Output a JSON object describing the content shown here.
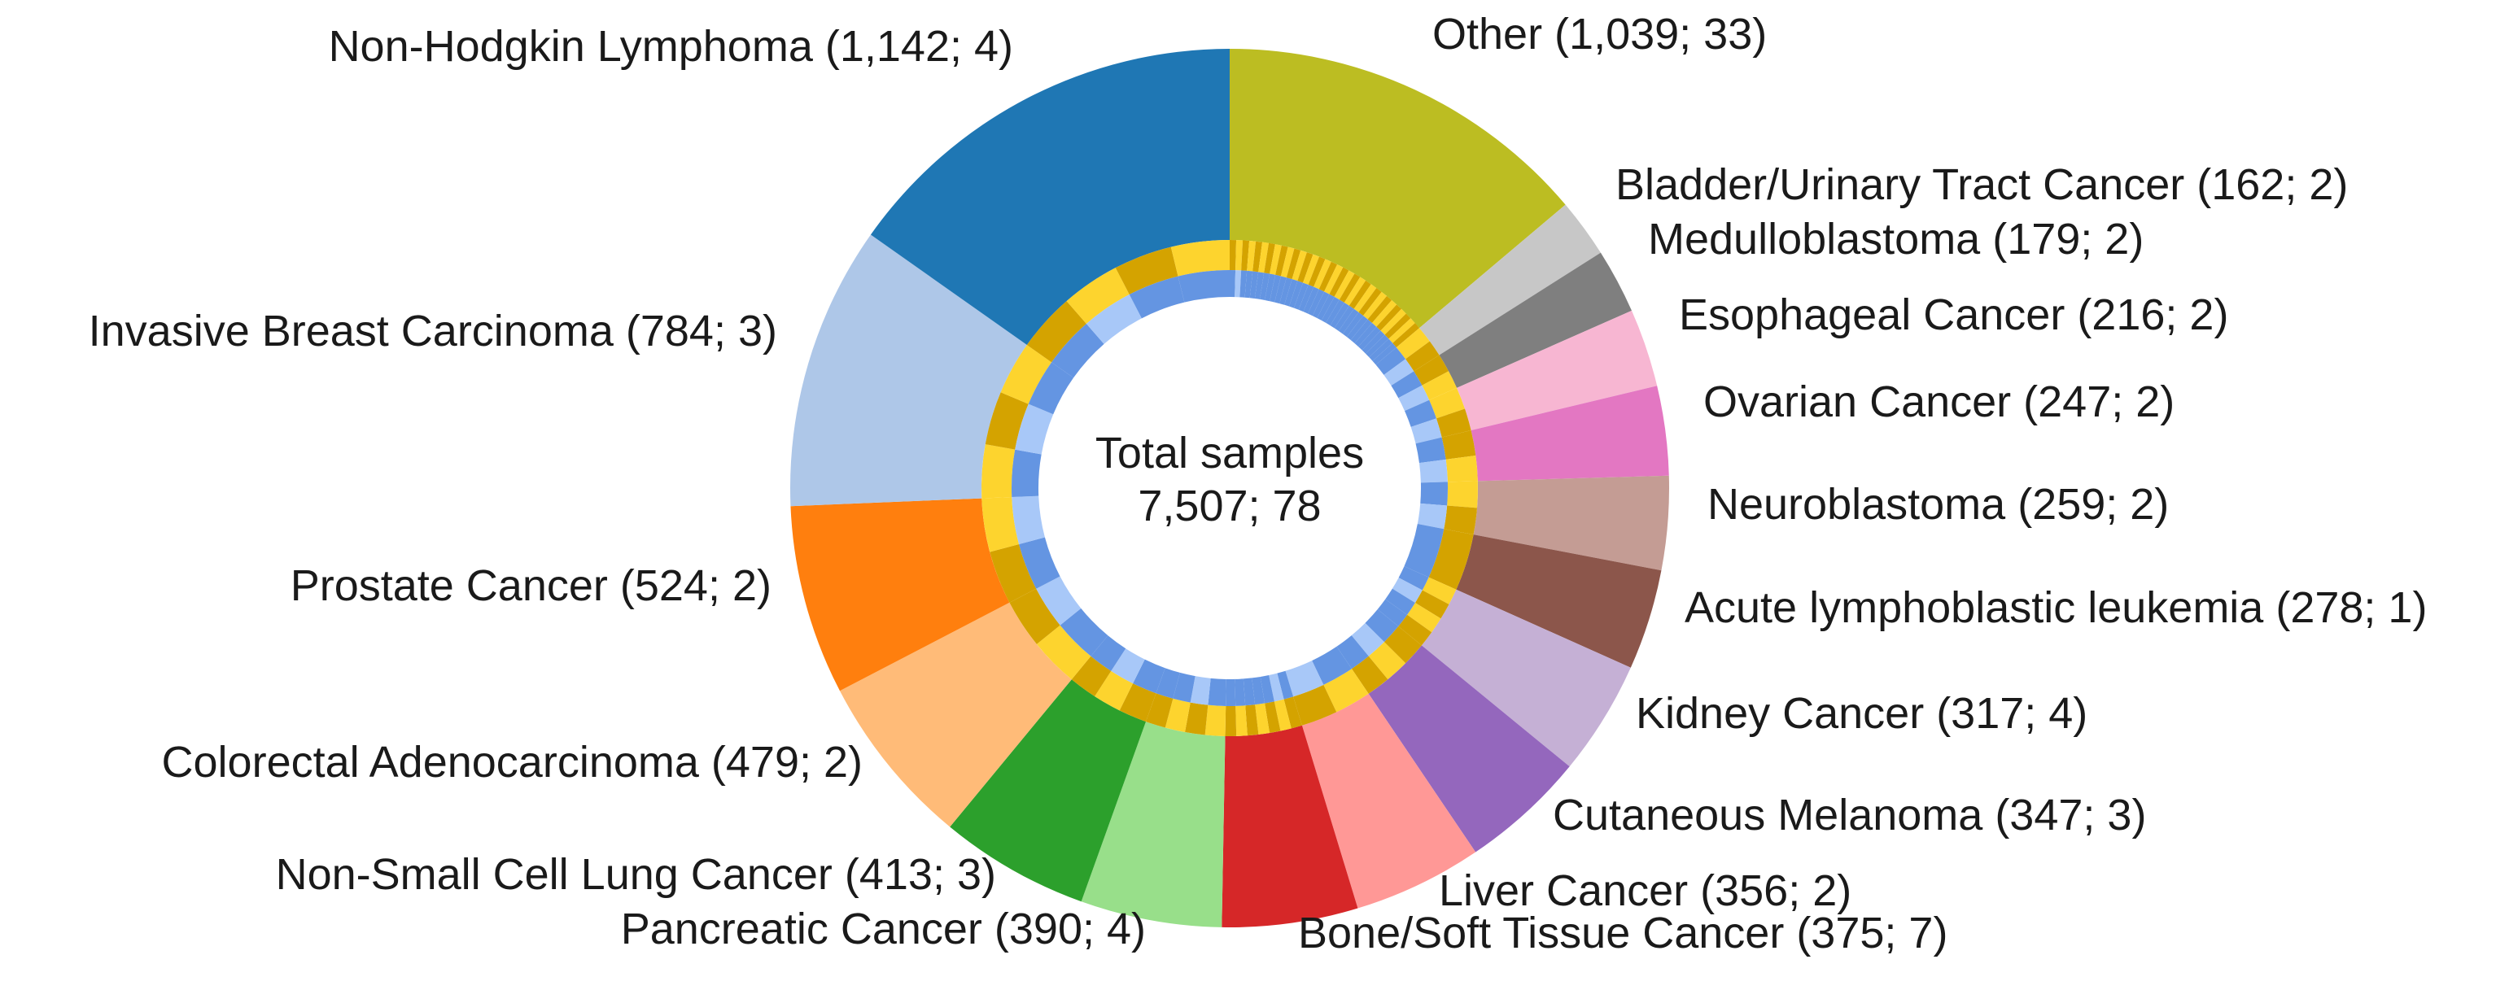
{
  "chart_data": {
    "type": "donut",
    "center": {
      "line1": "Total samples",
      "line2": "7,507; 78"
    },
    "categories": [
      {
        "name": "Other",
        "samples": 1039,
        "studies": 33,
        "label": "Other (1,039; 33)",
        "color": "#bcbd22"
      },
      {
        "name": "Bladder/Urinary Tract Cancer",
        "samples": 162,
        "studies": 2,
        "label": "Bladder/Urinary Tract Cancer (162; 2)",
        "color": "#c7c7c7"
      },
      {
        "name": "Medulloblastoma",
        "samples": 179,
        "studies": 2,
        "label": "Medulloblastoma (179; 2)",
        "color": "#7f7f7f"
      },
      {
        "name": "Esophageal Cancer",
        "samples": 216,
        "studies": 2,
        "label": "Esophageal Cancer (216; 2)",
        "color": "#f7b6d2"
      },
      {
        "name": "Ovarian Cancer",
        "samples": 247,
        "studies": 2,
        "label": "Ovarian Cancer (247; 2)",
        "color": "#e377c2"
      },
      {
        "name": "Neuroblastoma",
        "samples": 259,
        "studies": 2,
        "label": "Neuroblastoma (259; 2)",
        "color": "#c49c94"
      },
      {
        "name": "Acute lymphoblastic leukemia",
        "samples": 278,
        "studies": 1,
        "label": "Acute lymphoblastic leukemia (278; 1)",
        "color": "#8c564b"
      },
      {
        "name": "Kidney Cancer",
        "samples": 317,
        "studies": 4,
        "label": "Kidney Cancer (317; 4)",
        "color": "#c5b0d5"
      },
      {
        "name": "Cutaneous Melanoma",
        "samples": 347,
        "studies": 3,
        "label": "Cutaneous Melanoma (347; 3)",
        "color": "#9467bd"
      },
      {
        "name": "Liver Cancer",
        "samples": 356,
        "studies": 2,
        "label": "Liver Cancer (356; 2)",
        "color": "#ff9896"
      },
      {
        "name": "Bone/Soft Tissue Cancer",
        "samples": 375,
        "studies": 7,
        "label": "Bone/Soft Tissue Cancer (375; 7)",
        "color": "#d62728"
      },
      {
        "name": "Pancreatic Cancer",
        "samples": 390,
        "studies": 4,
        "label": "Pancreatic Cancer (390; 4)",
        "color": "#98df8a"
      },
      {
        "name": "Non-Small Cell Lung Cancer",
        "samples": 413,
        "studies": 3,
        "label": "Non-Small Cell Lung Cancer (413; 3)",
        "color": "#2ca02c"
      },
      {
        "name": "Colorectal Adenocarcinoma",
        "samples": 479,
        "studies": 2,
        "label": "Colorectal Adenocarcinoma (479; 2)",
        "color": "#ffbb78"
      },
      {
        "name": "Prostate Cancer",
        "samples": 524,
        "studies": 2,
        "label": "Prostate Cancer (524; 2)",
        "color": "#ff7f0e"
      },
      {
        "name": "Invasive Breast Carcinoma",
        "samples": 784,
        "studies": 3,
        "label": "Invasive Breast Carcinoma (784; 3)",
        "color": "#aec7e8"
      },
      {
        "name": "Non-Hodgkin Lymphoma",
        "samples": 1142,
        "studies": 4,
        "label": "Non-Hodgkin Lymphoma (1,142; 4)",
        "color": "#1f77b4"
      }
    ],
    "ring_colors": {
      "middle": [
        "#d4a300",
        "#fdd42e"
      ],
      "inner": [
        "#6495e2",
        "#a8c8f8"
      ]
    },
    "direction": "clockwise from top"
  }
}
